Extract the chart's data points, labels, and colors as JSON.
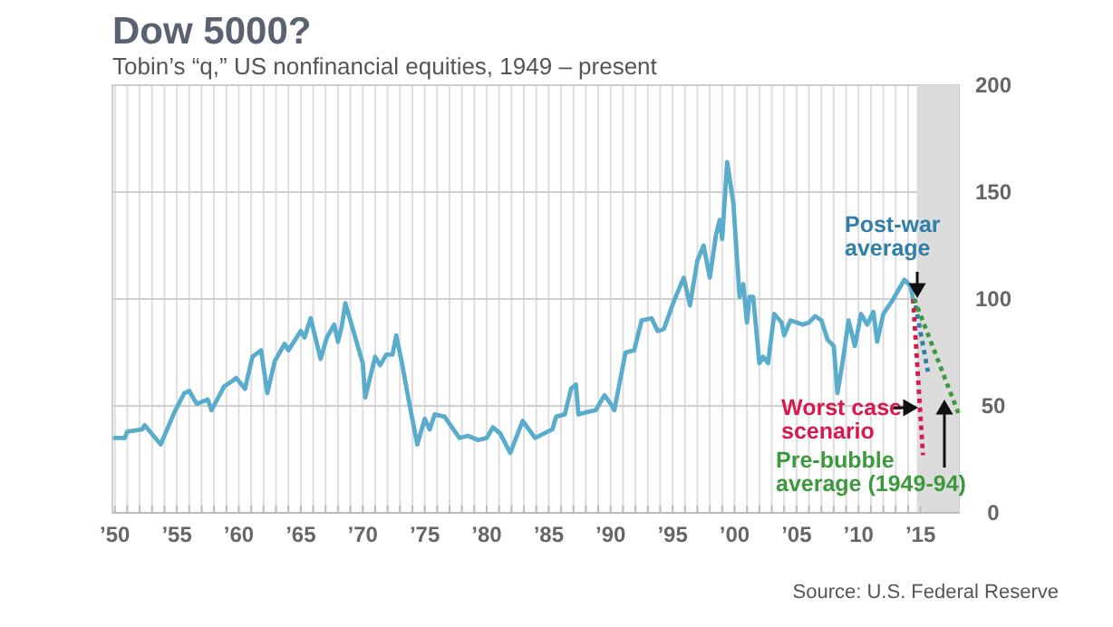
{
  "chart_data": {
    "type": "line",
    "title": "Dow 5000?",
    "subtitle": "Tobin’s “q,” US nonfinancial equities, 1949 – present",
    "annotations": [
      "Source: U.S. Federal Reserve"
    ],
    "xlim": [
      1949.8,
      2018.1
    ],
    "ylim": [
      0,
      200
    ],
    "yticks": [
      0,
      50,
      100,
      150,
      200
    ],
    "xticks": [
      {
        "value": 1950,
        "label": "’50"
      },
      {
        "value": 1951,
        "label": null
      },
      {
        "value": 1952,
        "label": null
      },
      {
        "value": 1953,
        "label": null
      },
      {
        "value": 1954,
        "label": null
      },
      {
        "value": 1955,
        "label": "’55"
      },
      {
        "value": 1956,
        "label": null
      },
      {
        "value": 1957,
        "label": null
      },
      {
        "value": 1958,
        "label": null
      },
      {
        "value": 1959,
        "label": null
      },
      {
        "value": 1960,
        "label": "’60"
      },
      {
        "value": 1961,
        "label": null
      },
      {
        "value": 1962,
        "label": null
      },
      {
        "value": 1963,
        "label": null
      },
      {
        "value": 1964,
        "label": null
      },
      {
        "value": 1965,
        "label": "’65"
      },
      {
        "value": 1966,
        "label": null
      },
      {
        "value": 1967,
        "label": null
      },
      {
        "value": 1968,
        "label": null
      },
      {
        "value": 1969,
        "label": null
      },
      {
        "value": 1970,
        "label": "’70"
      },
      {
        "value": 1971,
        "label": null
      },
      {
        "value": 1972,
        "label": null
      },
      {
        "value": 1973,
        "label": null
      },
      {
        "value": 1974,
        "label": null
      },
      {
        "value": 1975,
        "label": "’75"
      },
      {
        "value": 1976,
        "label": null
      },
      {
        "value": 1977,
        "label": null
      },
      {
        "value": 1978,
        "label": null
      },
      {
        "value": 1979,
        "label": null
      },
      {
        "value": 1980,
        "label": "’80"
      },
      {
        "value": 1981,
        "label": null
      },
      {
        "value": 1982,
        "label": null
      },
      {
        "value": 1983,
        "label": null
      },
      {
        "value": 1984,
        "label": null
      },
      {
        "value": 1985,
        "label": "’85"
      },
      {
        "value": 1986,
        "label": null
      },
      {
        "value": 1987,
        "label": null
      },
      {
        "value": 1988,
        "label": null
      },
      {
        "value": 1989,
        "label": null
      },
      {
        "value": 1990,
        "label": "’90"
      },
      {
        "value": 1991,
        "label": null
      },
      {
        "value": 1992,
        "label": null
      },
      {
        "value": 1993,
        "label": null
      },
      {
        "value": 1994,
        "label": null
      },
      {
        "value": 1995,
        "label": "’95"
      },
      {
        "value": 1996,
        "label": null
      },
      {
        "value": 1997,
        "label": null
      },
      {
        "value": 1998,
        "label": null
      },
      {
        "value": 1999,
        "label": null
      },
      {
        "value": 2000,
        "label": "’00"
      },
      {
        "value": 2001,
        "label": null
      },
      {
        "value": 2002,
        "label": null
      },
      {
        "value": 2003,
        "label": null
      },
      {
        "value": 2004,
        "label": null
      },
      {
        "value": 2005,
        "label": "’05"
      },
      {
        "value": 2006,
        "label": null
      },
      {
        "value": 2007,
        "label": null
      },
      {
        "value": 2008,
        "label": null
      },
      {
        "value": 2009,
        "label": null
      },
      {
        "value": 2010,
        "label": "’10"
      },
      {
        "value": 2011,
        "label": null
      },
      {
        "value": 2012,
        "label": null
      },
      {
        "value": 2013,
        "label": null
      },
      {
        "value": 2014,
        "label": null
      },
      {
        "value": 2015,
        "label": "’15"
      }
    ],
    "grid": true,
    "bands": [
      {
        "axis": "x",
        "from": 2014.7,
        "to": 2018.1,
        "color": "#dcdcdc"
      }
    ],
    "series": [
      {
        "color": "#5aaccc",
        "line_style": "solid",
        "x": [
          1950,
          1950.8,
          1951,
          1952.2,
          1952.4,
          1953.7,
          1954.8,
          1955.6,
          1956,
          1956.6,
          1957.5,
          1957.8,
          1958.8,
          1959.8,
          1960.5,
          1961.1,
          1961.8,
          1962.3,
          1962.9,
          1963.7,
          1964,
          1965,
          1965.3,
          1965.8,
          1966.6,
          1967.1,
          1967.7,
          1968,
          1968.3,
          1968.6,
          1970,
          1970.2,
          1971,
          1971.4,
          1971.9,
          1972.4,
          1972.7,
          1973.2,
          1973.6,
          1974.4,
          1975,
          1975.4,
          1975.8,
          1976.6,
          1977.2,
          1977.8,
          1978.5,
          1979.3,
          1980,
          1980.5,
          1981.1,
          1981.9,
          1982.9,
          1983.9,
          1984.6,
          1985.3,
          1985.6,
          1986.3,
          1986.8,
          1987.2,
          1987.4,
          1988,
          1988.8,
          1989.5,
          1990,
          1990.3,
          1990.7,
          1991.2,
          1991.9,
          1992.5,
          1993.3,
          1993.8,
          1994.3,
          1995.1,
          1995.9,
          1996.4,
          1997,
          1997.5,
          1998,
          1998.5,
          1998.8,
          1999,
          1999.4,
          1999.9,
          2000.4,
          2000.7,
          2001,
          2001.2,
          2001.5,
          2002,
          2002.3,
          2002.7,
          2003.2,
          2003.8,
          2004,
          2004.5,
          2005.5,
          2006,
          2006.5,
          2007,
          2007.5,
          2008,
          2008.3,
          2008.7,
          2009.2,
          2009.7,
          2010.2,
          2010.7,
          2011.2,
          2011.5,
          2012,
          2012.7,
          2013.2,
          2013.7,
          2014.2,
          2014.4
        ],
        "values": [
          35,
          35,
          38,
          39,
          41,
          32,
          47,
          56,
          57,
          51,
          53,
          48,
          59,
          63,
          58,
          73,
          76,
          56,
          71,
          79,
          76,
          85,
          82,
          91,
          72,
          82,
          88,
          80,
          87,
          98,
          70,
          54,
          73,
          69,
          74,
          74,
          83,
          69,
          56,
          32,
          44,
          39,
          46,
          45,
          40,
          35,
          36,
          34,
          35,
          40,
          37,
          28,
          43,
          35,
          37,
          39,
          45,
          46,
          58,
          60,
          46,
          47,
          48,
          55,
          51,
          48,
          60,
          75,
          76,
          90,
          91,
          85,
          86,
          99,
          110,
          97,
          118,
          125,
          110,
          130,
          137,
          128,
          164,
          145,
          101,
          107,
          89,
          101,
          101,
          70,
          73,
          70,
          93,
          89,
          83,
          90,
          88,
          89,
          92,
          90,
          81,
          78,
          56,
          70,
          90,
          78,
          93,
          88,
          94,
          80,
          93,
          99,
          104,
          109,
          106,
          100
        ]
      },
      {
        "name": "Post-war average",
        "color": "#2f7fa8",
        "line_style": "dotted",
        "x": [
          2014.6,
          2015.6
        ],
        "values": [
          97,
          66
        ]
      },
      {
        "name": "Worst case scenario",
        "color": "#d6194f",
        "line_style": "dotted",
        "x": [
          2014.4,
          2015.2
        ],
        "values": [
          100,
          27
        ]
      },
      {
        "name": "Pre-bubble average (1949-94)",
        "color": "#3c9a3c",
        "line_style": "dotted",
        "x": [
          2014.5,
          2018.1
        ],
        "values": [
          100,
          46
        ]
      }
    ]
  }
}
